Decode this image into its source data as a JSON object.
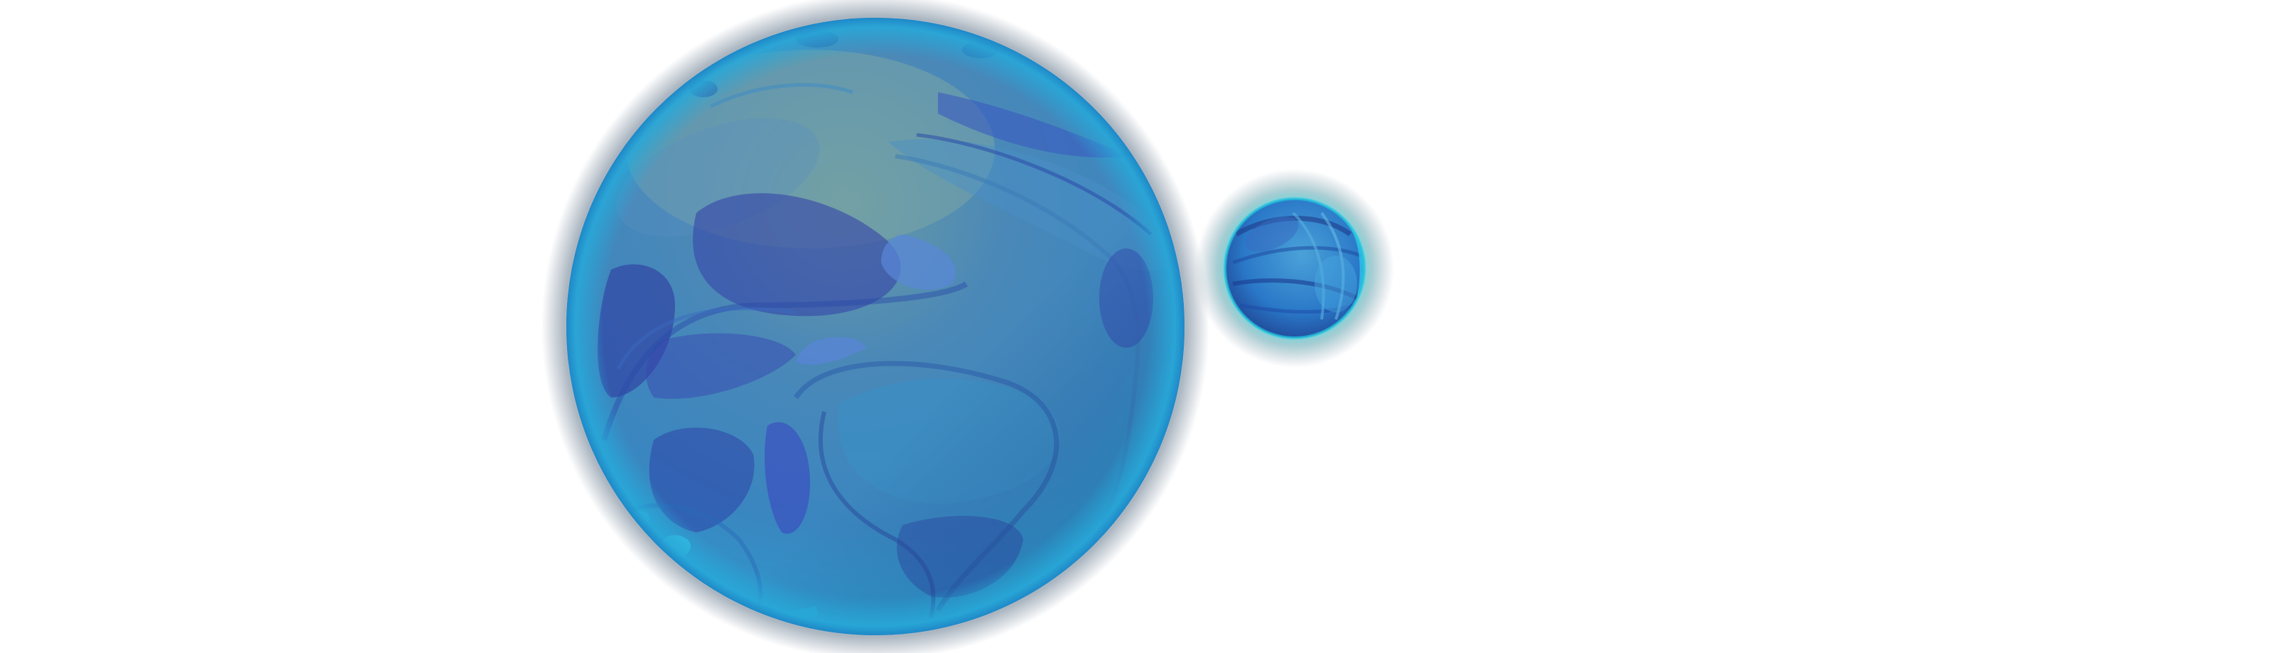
{
  "scene": {
    "background": "#ffffff",
    "objects": [
      {
        "name": "large-blue-planet",
        "base_color": "#3a86c0",
        "highlight_color": "#6a9aa3",
        "shadow_color": "#2c3e9e",
        "rim_color": "#28a8d8",
        "halo_color": "#9aa7b4"
      },
      {
        "name": "small-blue-moon",
        "base_color": "#2a78c8",
        "highlight_color": "#4aa2d8",
        "shadow_color": "#1e3a8a",
        "rim_color": "#20c8e0",
        "halo_color": "#5fd0d8"
      }
    ]
  }
}
